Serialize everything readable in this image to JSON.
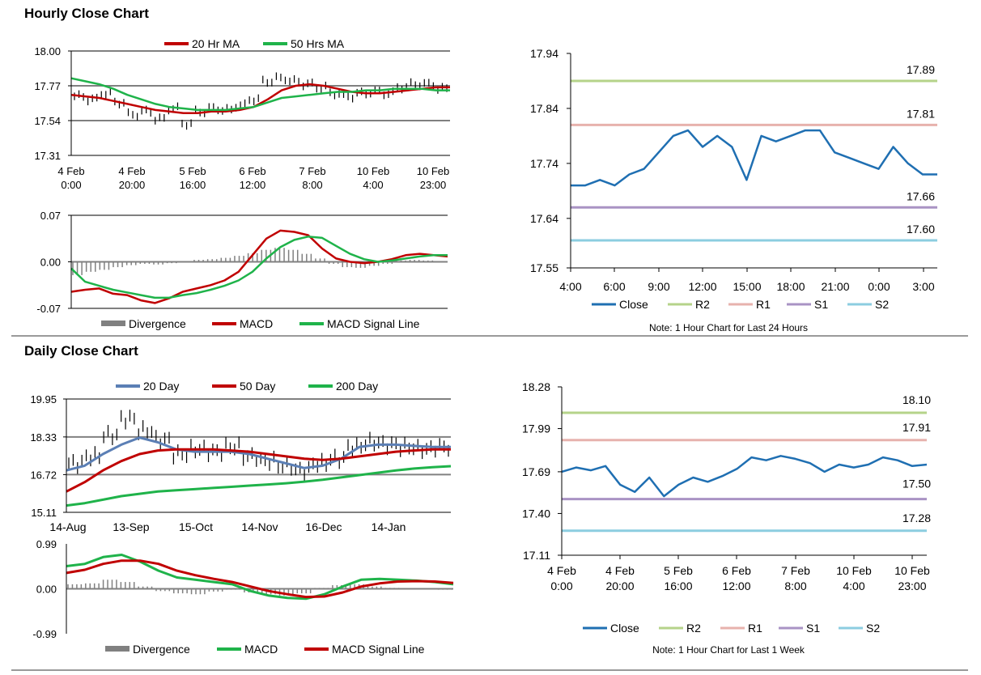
{
  "sections": {
    "hourly_title": "Hourly Close Chart",
    "daily_title": "Daily Close Chart"
  },
  "colors": {
    "ma_red": "#c00000",
    "ma_green": "#1fb34a",
    "ma_blue": "#5b7fb5",
    "close": "#1f6fb2",
    "r2": "#b5d38a",
    "r1": "#e7b2ad",
    "s1": "#a993c4",
    "s2": "#8ccde0",
    "divergence": "#808080",
    "grid": "#808080"
  },
  "chart_data": [
    {
      "id": "hourly-price",
      "type": "line",
      "title": "",
      "legend": [
        "20 Hr MA",
        "50 Hrs MA"
      ],
      "y_ticks": [
        "18.00",
        "17.77",
        "17.54",
        "17.31"
      ],
      "ylim": [
        17.31,
        18.0
      ],
      "x_ticks": [
        [
          "4 Feb",
          "0:00"
        ],
        [
          "4 Feb",
          "20:00"
        ],
        [
          "5 Feb",
          "16:00"
        ],
        [
          "6 Feb",
          "12:00"
        ],
        [
          "7 Feb",
          "8:00"
        ],
        [
          "10 Feb",
          "4:00"
        ],
        [
          "10 Feb",
          "23:00"
        ]
      ],
      "series": [
        {
          "name": "Close",
          "values": [
            17.7,
            17.68,
            17.72,
            17.66,
            17.58,
            17.6,
            17.55,
            17.62,
            17.52,
            17.6,
            17.62,
            17.61,
            17.64,
            17.68,
            17.8,
            17.82,
            17.8,
            17.78,
            17.76,
            17.72,
            17.7,
            17.72,
            17.73,
            17.72,
            17.76,
            17.78,
            17.78,
            17.75
          ]
        },
        {
          "name": "20 Hr MA",
          "values": [
            17.71,
            17.7,
            17.69,
            17.67,
            17.65,
            17.63,
            17.61,
            17.6,
            17.59,
            17.59,
            17.6,
            17.6,
            17.61,
            17.63,
            17.68,
            17.74,
            17.77,
            17.78,
            17.77,
            17.75,
            17.73,
            17.72,
            17.72,
            17.73,
            17.74,
            17.75,
            17.76,
            17.76
          ]
        },
        {
          "name": "50 Hrs MA",
          "values": [
            17.82,
            17.8,
            17.78,
            17.75,
            17.71,
            17.68,
            17.65,
            17.63,
            17.62,
            17.61,
            17.61,
            17.61,
            17.62,
            17.63,
            17.66,
            17.69,
            17.7,
            17.71,
            17.72,
            17.73,
            17.73,
            17.74,
            17.74,
            17.75,
            17.75,
            17.75,
            17.74,
            17.74
          ]
        }
      ]
    },
    {
      "id": "hourly-macd",
      "type": "line",
      "legend": [
        "Divergence",
        "MACD",
        "MACD Signal Line"
      ],
      "y_ticks": [
        "0.07",
        "0.00",
        "-0.07"
      ],
      "ylim": [
        -0.07,
        0.07
      ],
      "divergence": [
        -0.02,
        -0.015,
        -0.012,
        -0.008,
        -0.005,
        -0.003,
        -0.004,
        -0.002,
        0.001,
        0.003,
        0.004,
        0.006,
        0.009,
        0.013,
        0.018,
        0.021,
        0.018,
        0.012,
        0.005,
        -0.003,
        -0.008,
        -0.009,
        -0.006,
        -0.003,
        0.002,
        0.003,
        0.002,
        0.001
      ],
      "series": [
        {
          "name": "MACD",
          "values": [
            -0.045,
            -0.042,
            -0.04,
            -0.048,
            -0.05,
            -0.058,
            -0.062,
            -0.055,
            -0.045,
            -0.04,
            -0.035,
            -0.028,
            -0.015,
            0.01,
            0.035,
            0.047,
            0.045,
            0.04,
            0.02,
            0.005,
            0.0,
            -0.002,
            0.0,
            0.004,
            0.01,
            0.012,
            0.01,
            0.008
          ]
        },
        {
          "name": "MACD Signal Line",
          "values": [
            -0.01,
            -0.03,
            -0.036,
            -0.042,
            -0.046,
            -0.05,
            -0.054,
            -0.054,
            -0.05,
            -0.047,
            -0.042,
            -0.036,
            -0.028,
            -0.015,
            0.005,
            0.022,
            0.033,
            0.038,
            0.036,
            0.024,
            0.012,
            0.004,
            0.0,
            0.002,
            0.005,
            0.008,
            0.01,
            0.01
          ]
        }
      ]
    },
    {
      "id": "hourly-24h",
      "type": "line",
      "note": "Note: 1 Hour Chart for Last 24 Hours",
      "legend": [
        "Close",
        "R2",
        "R1",
        "S1",
        "S2"
      ],
      "y_ticks": [
        "17.94",
        "17.84",
        "17.74",
        "17.64",
        "17.55"
      ],
      "ylim": [
        17.55,
        17.94
      ],
      "x_ticks": [
        "4:00",
        "6:00",
        "9:00",
        "12:00",
        "15:00",
        "18:00",
        "21:00",
        "0:00",
        "3:00"
      ],
      "levels": {
        "R2": "17.89",
        "R1": "17.81",
        "S1": "17.66",
        "S2": "17.60"
      },
      "series": [
        {
          "name": "Close",
          "values": [
            17.7,
            17.7,
            17.71,
            17.7,
            17.72,
            17.73,
            17.76,
            17.79,
            17.8,
            17.77,
            17.79,
            17.77,
            17.71,
            17.79,
            17.78,
            17.79,
            17.8,
            17.8,
            17.76,
            17.75,
            17.74,
            17.73,
            17.77,
            17.74,
            17.72,
            17.72
          ]
        }
      ]
    },
    {
      "id": "daily-price",
      "type": "line",
      "legend": [
        "20 Day",
        "50 Day",
        "200 Day"
      ],
      "y_ticks": [
        "19.95",
        "18.33",
        "16.72",
        "15.11"
      ],
      "ylim": [
        15.11,
        19.95
      ],
      "x_ticks": [
        "14-Aug",
        "13-Sep",
        "15-Oct",
        "14-Nov",
        "16-Dec",
        "14-Jan"
      ],
      "series": [
        {
          "name": "Close",
          "values": [
            17.2,
            17.5,
            18.4,
            19.1,
            18.6,
            18.2,
            17.6,
            17.8,
            17.7,
            17.9,
            17.5,
            17.3,
            17.1,
            16.9,
            17.2,
            17.4,
            17.9,
            18.1,
            18.0,
            17.9,
            17.8,
            17.9
          ]
        },
        {
          "name": "20 Day",
          "values": [
            16.9,
            17.1,
            17.6,
            18.0,
            18.3,
            18.1,
            17.8,
            17.7,
            17.7,
            17.7,
            17.6,
            17.4,
            17.2,
            17.0,
            17.1,
            17.4,
            17.9,
            18.0,
            18.0,
            17.95,
            17.9,
            17.9
          ]
        },
        {
          "name": "50 Day",
          "values": [
            16.0,
            16.4,
            16.9,
            17.3,
            17.6,
            17.75,
            17.8,
            17.8,
            17.8,
            17.75,
            17.7,
            17.6,
            17.5,
            17.4,
            17.35,
            17.4,
            17.5,
            17.6,
            17.7,
            17.75,
            17.8,
            17.8
          ]
        },
        {
          "name": "200 Day",
          "values": [
            15.4,
            15.5,
            15.65,
            15.8,
            15.9,
            16.0,
            16.05,
            16.1,
            16.15,
            16.2,
            16.25,
            16.3,
            16.35,
            16.42,
            16.5,
            16.6,
            16.7,
            16.8,
            16.9,
            16.98,
            17.04,
            17.08
          ]
        }
      ]
    },
    {
      "id": "daily-macd",
      "type": "line",
      "legend": [
        "Divergence",
        "MACD",
        "MACD Signal Line"
      ],
      "y_ticks": [
        "0.99",
        "0.00",
        "-0.99"
      ],
      "ylim": [
        -0.99,
        0.99
      ],
      "divergence": [
        0.1,
        0.12,
        0.2,
        0.15,
        0.05,
        -0.05,
        -0.1,
        -0.12,
        -0.06,
        -0.02,
        -0.08,
        -0.12,
        -0.15,
        -0.1,
        0.02,
        0.08,
        0.1,
        0.05,
        0.02,
        0.01,
        0.0,
        -0.02
      ],
      "series": [
        {
          "name": "MACD",
          "values": [
            0.5,
            0.55,
            0.7,
            0.75,
            0.6,
            0.4,
            0.25,
            0.2,
            0.15,
            0.1,
            -0.05,
            -0.15,
            -0.2,
            -0.22,
            -0.12,
            0.05,
            0.2,
            0.22,
            0.2,
            0.18,
            0.15,
            0.1
          ]
        },
        {
          "name": "MACD Signal Line",
          "values": [
            0.35,
            0.42,
            0.55,
            0.62,
            0.62,
            0.55,
            0.4,
            0.3,
            0.22,
            0.15,
            0.05,
            -0.05,
            -0.12,
            -0.18,
            -0.17,
            -0.08,
            0.05,
            0.12,
            0.16,
            0.17,
            0.16,
            0.13
          ]
        }
      ]
    },
    {
      "id": "daily-week",
      "type": "line",
      "note": "Note: 1 Hour Chart for Last 1 Week",
      "legend": [
        "Close",
        "R2",
        "R1",
        "S1",
        "S2"
      ],
      "y_ticks": [
        "18.28",
        "17.99",
        "17.69",
        "17.40",
        "17.11"
      ],
      "ylim": [
        17.11,
        18.28
      ],
      "x_ticks": [
        [
          "4 Feb",
          "0:00"
        ],
        [
          "4 Feb",
          "20:00"
        ],
        [
          "5 Feb",
          "16:00"
        ],
        [
          "6 Feb",
          "12:00"
        ],
        [
          "7 Feb",
          "8:00"
        ],
        [
          "10 Feb",
          "4:00"
        ],
        [
          "10 Feb",
          "23:00"
        ]
      ],
      "levels": {
        "R2": "18.10",
        "R1": "17.91",
        "S1": "17.50",
        "S2": "17.28"
      },
      "series": [
        {
          "name": "Close",
          "values": [
            17.69,
            17.72,
            17.7,
            17.73,
            17.6,
            17.55,
            17.65,
            17.52,
            17.6,
            17.65,
            17.62,
            17.66,
            17.71,
            17.79,
            17.77,
            17.8,
            17.78,
            17.75,
            17.69,
            17.74,
            17.72,
            17.74,
            17.79,
            17.77,
            17.73,
            17.74
          ]
        }
      ]
    }
  ]
}
